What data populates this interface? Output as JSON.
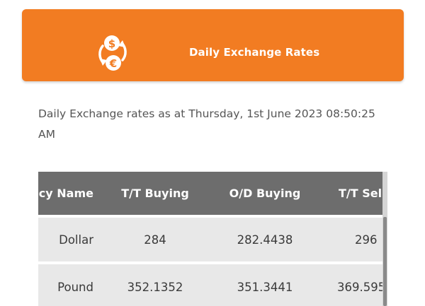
{
  "banner": {
    "title": "Daily Exchange Rates",
    "icon": "currency-exchange-icon",
    "color": "#f27c22"
  },
  "as_of": "Daily Exchange rates as at Thursday, 1st June 2023 08:50:25 AM",
  "table": {
    "headers": [
      "cy Name",
      "T/T Buying",
      "O/D Buying",
      "T/T Sellin"
    ],
    "rows": [
      {
        "name": "Dollar",
        "tt_buying": "284",
        "od_buying": "282.4438",
        "tt_selling": "296"
      },
      {
        "name": "Pound",
        "tt_buying": "352.1352",
        "od_buying": "351.3441",
        "tt_selling": "369.595"
      }
    ],
    "header_color": "#6d6d6d",
    "row_color": "#e8e8e8"
  }
}
